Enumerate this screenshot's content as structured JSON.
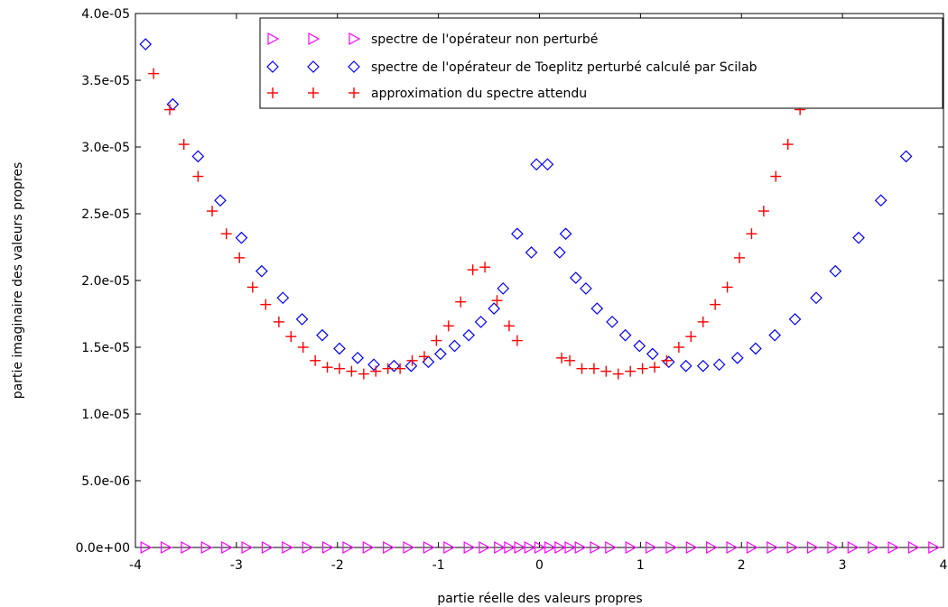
{
  "chart_data": {
    "type": "scatter",
    "title": "",
    "xlabel": "partie réelle des valeurs propres",
    "ylabel": "partie imaginaire des valeurs propres",
    "xlim": [
      -4,
      4
    ],
    "ylim": [
      0,
      4e-05
    ],
    "x_ticks": [
      -4,
      -3,
      -2,
      -1,
      0,
      1,
      2,
      3,
      4
    ],
    "x_tick_labels": [
      "-4",
      "-3",
      "-2",
      "-1",
      "0",
      "1",
      "2",
      "3",
      "4"
    ],
    "y_ticks": [
      0,
      5e-06,
      1e-05,
      1.5e-05,
      2e-05,
      2.5e-05,
      3e-05,
      3.5e-05,
      4e-05
    ],
    "y_tick_labels": [
      "0.0e+00",
      "5.0e-06",
      "1.0e-05",
      "1.5e-05",
      "2.0e-05",
      "2.5e-05",
      "3.0e-05",
      "3.5e-05",
      "4.0e-05"
    ],
    "grid": false,
    "legend_position": "top-right",
    "series": [
      {
        "name": "spectre de l'opérateur non perturbé",
        "marker": "triangle-right",
        "color": "#ff00ff",
        "x": [
          -3.9,
          -3.7,
          -3.5,
          -3.3,
          -3.1,
          -2.9,
          -2.7,
          -2.5,
          -2.3,
          -2.1,
          -1.9,
          -1.7,
          -1.5,
          -1.3,
          -1.1,
          -0.9,
          -0.7,
          -0.55,
          -0.4,
          -0.3,
          -0.2,
          -0.1,
          0.0,
          0.1,
          0.2,
          0.3,
          0.4,
          0.55,
          0.7,
          0.9,
          1.1,
          1.3,
          1.5,
          1.7,
          1.9,
          2.1,
          2.3,
          2.5,
          2.7,
          2.9,
          3.1,
          3.3,
          3.5,
          3.7,
          3.9
        ],
        "y": [
          0,
          0,
          0,
          0,
          0,
          0,
          0,
          0,
          0,
          0,
          0,
          0,
          0,
          0,
          0,
          0,
          0,
          0,
          0,
          0,
          0,
          0,
          0,
          0,
          0,
          0,
          0,
          0,
          0,
          0,
          0,
          0,
          0,
          0,
          0,
          0,
          0,
          0,
          0,
          0,
          0,
          0,
          0,
          0,
          0
        ]
      },
      {
        "name": "spectre de l'opérateur de Toeplitz perturbé calculé par Scilab",
        "marker": "diamond",
        "color": "#0000ff",
        "x": [
          -3.9,
          -3.63,
          -3.38,
          -3.16,
          -2.95,
          -2.75,
          -2.54,
          -2.35,
          -2.15,
          -1.98,
          -1.8,
          -1.64,
          -1.44,
          -1.27,
          -1.1,
          -0.98,
          -0.84,
          -0.7,
          -0.58,
          -0.45,
          -0.36,
          -0.22,
          -0.08,
          -0.03,
          0.08,
          0.2,
          0.26,
          0.36,
          0.46,
          0.57,
          0.72,
          0.85,
          0.99,
          1.12,
          1.28,
          1.45,
          1.62,
          1.78,
          1.96,
          2.14,
          2.33,
          2.53,
          2.74,
          2.93,
          3.16,
          3.38,
          3.63,
          3.9
        ],
        "y": [
          3.77e-05,
          3.32e-05,
          2.93e-05,
          2.6e-05,
          2.32e-05,
          2.07e-05,
          1.87e-05,
          1.71e-05,
          1.59e-05,
          1.49e-05,
          1.42e-05,
          1.37e-05,
          1.36e-05,
          1.36e-05,
          1.39e-05,
          1.45e-05,
          1.51e-05,
          1.59e-05,
          1.69e-05,
          1.79e-05,
          1.94e-05,
          2.35e-05,
          2.21e-05,
          2.87e-05,
          2.87e-05,
          2.21e-05,
          2.35e-05,
          2.02e-05,
          1.94e-05,
          1.79e-05,
          1.69e-05,
          1.59e-05,
          1.51e-05,
          1.45e-05,
          1.39e-05,
          1.36e-05,
          1.36e-05,
          1.37e-05,
          1.42e-05,
          1.49e-05,
          1.59e-05,
          1.71e-05,
          1.87e-05,
          2.07e-05,
          2.32e-05,
          2.6e-05,
          2.93e-05,
          3.77e-05
        ]
      },
      {
        "name": "approximation du spectre attendu",
        "marker": "plus",
        "color": "#ff0000",
        "x": [
          -3.82,
          -3.66,
          -3.52,
          -3.38,
          -3.24,
          -3.1,
          -2.97,
          -2.84,
          -2.71,
          -2.58,
          -2.46,
          -2.34,
          -2.22,
          -2.1,
          -1.98,
          -1.86,
          -1.74,
          -1.62,
          -1.5,
          -1.38,
          -1.26,
          -1.14,
          -1.02,
          -0.9,
          -0.78,
          -0.66,
          -0.54,
          -0.42,
          -0.3,
          -0.22,
          0.22,
          0.3,
          0.42,
          0.54,
          0.66,
          0.78,
          0.9,
          1.02,
          1.14,
          1.26,
          1.38,
          1.5,
          1.62,
          1.74,
          1.86,
          1.98,
          2.1,
          2.22,
          2.34,
          2.46,
          2.58,
          2.71,
          2.84,
          2.97,
          3.1,
          3.24,
          3.38,
          3.52,
          3.66,
          3.82
        ],
        "y": [
          3.55e-05,
          3.28e-05,
          3.02e-05,
          2.78e-05,
          2.52e-05,
          2.35e-05,
          2.17e-05,
          1.95e-05,
          1.82e-05,
          1.69e-05,
          1.58e-05,
          1.5e-05,
          1.4e-05,
          1.35e-05,
          1.34e-05,
          1.32e-05,
          1.3e-05,
          1.32e-05,
          1.34e-05,
          1.34e-05,
          1.4e-05,
          1.43e-05,
          1.55e-05,
          1.66e-05,
          1.84e-05,
          2.08e-05,
          2.1e-05,
          1.85e-05,
          1.66e-05,
          1.55e-05,
          1.42e-05,
          1.4e-05,
          1.34e-05,
          1.34e-05,
          1.32e-05,
          1.3e-05,
          1.32e-05,
          1.34e-05,
          1.35e-05,
          1.4e-05,
          1.5e-05,
          1.58e-05,
          1.69e-05,
          1.82e-05,
          1.95e-05,
          2.17e-05,
          2.35e-05,
          2.52e-05,
          2.78e-05,
          3.02e-05,
          3.28e-05,
          3.55e-05,
          3.55e-05,
          3.55e-05,
          3.55e-05,
          3.55e-05,
          3.55e-05,
          3.55e-05,
          3.55e-05,
          3.55e-05
        ]
      }
    ]
  }
}
